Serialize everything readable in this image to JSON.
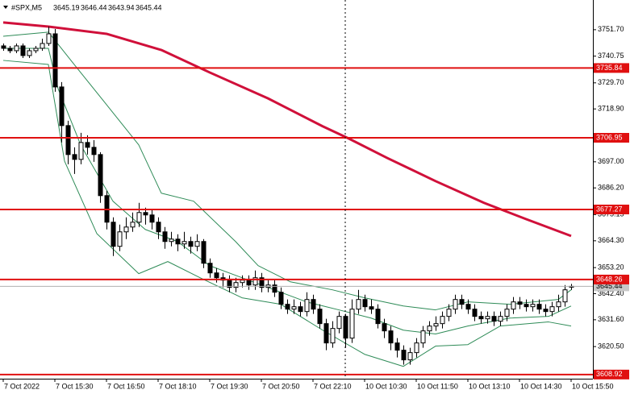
{
  "chart_data": {
    "type": "candlestick",
    "symbol": "#SPX,M5",
    "xlim": [
      -1,
      182.75
    ],
    "ylim": [
      3607.2,
      3764.0
    ],
    "yticks": [
      {
        "value": 3751.7,
        "label": "3751.70"
      },
      3740.75,
      {
        "value": 3729.7,
        "label": "3729.70"
      },
      {
        "value": 3718.9,
        "label": "3718.90"
      },
      {
        "value": 3697.0,
        "label": "3697.00"
      },
      {
        "value": 3686.2,
        "label": "3686.20"
      },
      3675.15,
      {
        "value": 3664.3,
        "label": "3664.30"
      },
      {
        "value": 3653.2,
        "label": "3653.20"
      },
      {
        "value": 3642.4,
        "label": "3642.40"
      },
      {
        "value": 3631.6,
        "label": "3631.60"
      },
      {
        "value": 3620.5,
        "label": "3620.50"
      }
    ],
    "xticks": [
      {
        "value": 0,
        "label": "7 Oct 2022"
      },
      {
        "value": 16,
        "label": "7 Oct 15:30"
      },
      {
        "value": 32,
        "label": "7 Oct 16:50"
      },
      {
        "value": 48,
        "label": "7 Oct 18:10"
      },
      {
        "value": 64,
        "label": "7 Oct 19:30"
      },
      {
        "value": 80,
        "label": "7 Oct 20:50"
      },
      {
        "value": 96,
        "label": "7 Oct 22:10"
      },
      {
        "value": 112,
        "label": "10 Oct 10:30"
      },
      {
        "value": 128,
        "label": "10 Oct 11:50"
      },
      {
        "value": 144,
        "label": "10 Oct 13:10"
      },
      {
        "value": 160,
        "label": "10 Oct 14:30"
      },
      {
        "value": 176,
        "label": "10 Oct 15:50"
      }
    ],
    "levels": [
      3735.84,
      3706.95,
      3677.27,
      3648.26,
      3608.92
    ],
    "level_color": "#e01010",
    "series": [
      {
        "type": "line",
        "color": "#2e8b57",
        "x": [
          0,
          14,
          22,
          32,
          42,
          49,
          59,
          72,
          79,
          89,
          102,
          112,
          124,
          134,
          144,
          157,
          172,
          176
        ],
        "values": [
          3749.0,
          3750.7,
          3737.3,
          3720.7,
          3704.0,
          3684.0,
          3680.7,
          3664.0,
          3654.0,
          3647.3,
          3644.0,
          3640.7,
          3637.3,
          3635.7,
          3639.0,
          3638.0,
          3640.0,
          3644.0
        ]
      },
      {
        "type": "line",
        "color": "#2e8b57",
        "x": [
          0,
          14,
          17,
          24,
          34,
          44,
          54,
          64,
          74,
          84,
          94,
          104,
          114,
          124,
          134,
          144,
          157,
          169,
          176
        ],
        "values": [
          3744.0,
          3744.0,
          3727.3,
          3704.0,
          3680.7,
          3669.0,
          3664.0,
          3654.0,
          3649.0,
          3644.0,
          3639.0,
          3635.7,
          3632.3,
          3627.3,
          3625.7,
          3629.0,
          3632.3,
          3633.0,
          3637.3
        ]
      },
      {
        "type": "line",
        "color": "#2e8b57",
        "x": [
          0,
          14,
          19,
          29,
          42,
          51,
          61,
          74,
          86,
          99,
          112,
          124,
          134,
          144,
          154,
          169,
          176
        ],
        "values": [
          3739.0,
          3737.3,
          3697.3,
          3667.3,
          3650.7,
          3655.7,
          3649.0,
          3640.7,
          3638.0,
          3627.3,
          3617.3,
          3612.3,
          3620.7,
          3621.3,
          3629.0,
          3630.7,
          3629.0
        ]
      },
      {
        "type": "line",
        "color": "#d0103a",
        "width": 3,
        "x": [
          0,
          14,
          32,
          49,
          64,
          82,
          99,
          107,
          119,
          134,
          149,
          162,
          176
        ],
        "values": [
          3754.7,
          3753.0,
          3750.0,
          3743.3,
          3734.0,
          3723.3,
          3711.7,
          3706.7,
          3698.6,
          3689.0,
          3680.0,
          3673.3,
          3666.3
        ]
      },
      {
        "type": "candlestick",
        "up_color": "#ffffff",
        "down_color": "#000000",
        "x": [
          0,
          2,
          4,
          6,
          8,
          10,
          12,
          14,
          16,
          18,
          20,
          22,
          24,
          26,
          28,
          30,
          32,
          34,
          36,
          38,
          40,
          42,
          44,
          46,
          48,
          50,
          52,
          54,
          56,
          58,
          60,
          62,
          64,
          66,
          68,
          70,
          72,
          74,
          76,
          78,
          80,
          82,
          84,
          86,
          88,
          90,
          92,
          94,
          96,
          98,
          100,
          102,
          104,
          106,
          108,
          110,
          112,
          114,
          116,
          118,
          120,
          122,
          124,
          126,
          128,
          130,
          132,
          134,
          136,
          138,
          140,
          142,
          144,
          146,
          148,
          150,
          152,
          154,
          156,
          158,
          160,
          162,
          164,
          166,
          168,
          170,
          172,
          174,
          176
        ],
        "open": [
          3745,
          3744,
          3743,
          3745,
          3741,
          3743,
          3744,
          3746,
          3750,
          3728,
          3712,
          3700,
          3698,
          3705,
          3703,
          3700,
          3683,
          3672,
          3662,
          3668,
          3670,
          3672,
          3676,
          3675,
          3672,
          3668,
          3664,
          3665,
          3663,
          3664,
          3662,
          3664,
          3655,
          3651,
          3649,
          3648,
          3645,
          3647,
          3648,
          3646,
          3649,
          3645,
          3646,
          3643,
          3638,
          3636,
          3637,
          3635,
          3640,
          3636,
          3630,
          3622,
          3628,
          3633,
          3624,
          3636,
          3640,
          3637,
          3636,
          3630,
          3627,
          3622,
          3619,
          3615,
          3618,
          3622,
          3627,
          3629,
          3630,
          3633,
          3636,
          3640,
          3638,
          3636,
          3633,
          3632,
          3633,
          3631,
          3633,
          3636,
          3639,
          3638,
          3637,
          3638,
          3636,
          3635,
          3637,
          3639,
          3645.19
        ],
        "high": [
          3746,
          3745,
          3746,
          3746,
          3744,
          3745,
          3748,
          3753,
          3752,
          3730,
          3714,
          3703,
          3709,
          3708,
          3706,
          3701,
          3685,
          3674,
          3671,
          3674,
          3676,
          3680,
          3678,
          3677,
          3674,
          3670,
          3668,
          3667,
          3668,
          3666,
          3667,
          3665,
          3657,
          3653,
          3651,
          3650,
          3649,
          3650,
          3650,
          3652,
          3651,
          3648,
          3648,
          3645,
          3640,
          3640,
          3639,
          3643,
          3642,
          3638,
          3632,
          3631,
          3635,
          3634,
          3640,
          3644,
          3642,
          3640,
          3638,
          3632,
          3629,
          3624,
          3621,
          3620,
          3624,
          3629,
          3631,
          3633,
          3635,
          3638,
          3642,
          3642,
          3640,
          3638,
          3635,
          3635,
          3635,
          3635,
          3638,
          3641,
          3641,
          3640,
          3640,
          3640,
          3638,
          3639,
          3642,
          3646,
          3646.44
        ],
        "low": [
          3743,
          3742,
          3742,
          3740,
          3740,
          3742,
          3743,
          3745,
          3726,
          3705,
          3696,
          3692,
          3696,
          3700,
          3697,
          3680,
          3669,
          3658,
          3660,
          3665,
          3668,
          3670,
          3671,
          3669,
          3665,
          3661,
          3662,
          3660,
          3661,
          3659,
          3660,
          3653,
          3649,
          3647,
          3645,
          3643,
          3643,
          3645,
          3644,
          3644,
          3643,
          3643,
          3641,
          3636,
          3634,
          3634,
          3633,
          3633,
          3634,
          3628,
          3619,
          3620,
          3626,
          3620,
          3622,
          3634,
          3635,
          3634,
          3628,
          3624,
          3619,
          3616,
          3613,
          3613,
          3616,
          3620,
          3625,
          3627,
          3628,
          3631,
          3634,
          3636,
          3634,
          3631,
          3630,
          3630,
          3629,
          3629,
          3631,
          3634,
          3636,
          3635,
          3635,
          3634,
          3633,
          3633,
          3635,
          3637,
          3643.94
        ],
        "close": [
          3744,
          3743,
          3745,
          3741,
          3743,
          3744,
          3746,
          3750,
          3728,
          3712,
          3700,
          3698,
          3705,
          3703,
          3700,
          3683,
          3672,
          3662,
          3668,
          3670,
          3672,
          3676,
          3675,
          3672,
          3668,
          3664,
          3665,
          3663,
          3664,
          3662,
          3664,
          3655,
          3651,
          3649,
          3648,
          3645,
          3647,
          3648,
          3646,
          3649,
          3645,
          3646,
          3643,
          3638,
          3636,
          3637,
          3635,
          3640,
          3636,
          3630,
          3622,
          3628,
          3633,
          3624,
          3636,
          3640,
          3637,
          3636,
          3630,
          3627,
          3622,
          3619,
          3615,
          3618,
          3622,
          3627,
          3629,
          3630,
          3633,
          3636,
          3640,
          3638,
          3636,
          3633,
          3632,
          3633,
          3631,
          3633,
          3636,
          3639,
          3638,
          3637,
          3638,
          3636,
          3635,
          3637,
          3639,
          3644,
          3645.44
        ]
      }
    ]
  }
}
